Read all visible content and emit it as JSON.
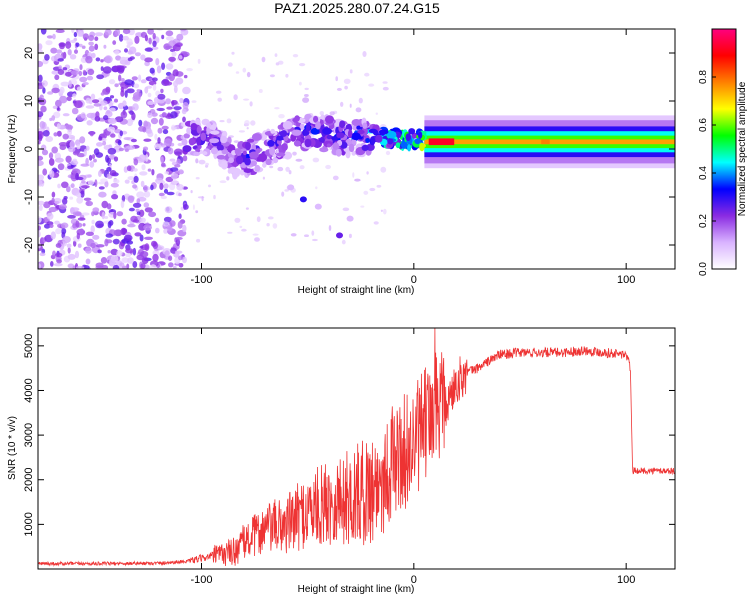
{
  "chart_data": [
    {
      "type": "heatmap",
      "title": "PAZ1.2025.280.07.24.G15",
      "xlabel": "Height of straight line (km)",
      "ylabel": "Frequency (Hz)",
      "xlim": [
        -177,
        123
      ],
      "ylim": [
        -25,
        25
      ],
      "xticks": [
        -100,
        0,
        100
      ],
      "yticks": [
        -20,
        -10,
        0,
        10,
        20
      ],
      "colorbar": {
        "label": "Normalized spectral amplitude",
        "range": [
          0,
          1
        ],
        "ticks": [
          0.0,
          0.2,
          0.4,
          0.6,
          0.8
        ],
        "colors": [
          "#ffffff",
          "#d9b3ff",
          "#8a2be2",
          "#0000ff",
          "#00ffff",
          "#00ff00",
          "#ffff00",
          "#ff8000",
          "#ff0000",
          "#ff007f"
        ]
      },
      "main_signal": [
        {
          "x": -108,
          "f": 2.5,
          "amp": 0.3
        },
        {
          "x": -95,
          "f": 2.0,
          "amp": 0.25
        },
        {
          "x": -85,
          "f": -2.0,
          "amp": 0.25
        },
        {
          "x": -78,
          "f": -2.0,
          "amp": 0.3
        },
        {
          "x": -70,
          "f": 0.0,
          "amp": 0.25
        },
        {
          "x": -60,
          "f": 2.0,
          "amp": 0.3
        },
        {
          "x": -50,
          "f": 4.0,
          "amp": 0.3
        },
        {
          "x": -40,
          "f": 3.0,
          "amp": 0.3
        },
        {
          "x": -30,
          "f": 2.0,
          "amp": 0.3
        },
        {
          "x": -20,
          "f": 3.0,
          "amp": 0.4
        },
        {
          "x": -10,
          "f": 2.0,
          "amp": 0.5
        },
        {
          "x": 0,
          "f": 2.0,
          "amp": 0.5
        },
        {
          "x": 10,
          "f": 1.5,
          "amp": 0.8
        },
        {
          "x": 30,
          "f": 1.5,
          "amp": 0.6
        },
        {
          "x": 60,
          "f": 1.5,
          "amp": 0.7
        },
        {
          "x": 100,
          "f": 1.5,
          "amp": 0.55
        },
        {
          "x": 123,
          "f": 1.5,
          "amp": 0.55
        }
      ]
    },
    {
      "type": "line",
      "xlabel": "Height of straight line (km)",
      "ylabel": "SNR (10 * v/v)",
      "xlim": [
        -177,
        123
      ],
      "ylim": [
        0,
        5400
      ],
      "xticks": [
        -100,
        0,
        100
      ],
      "yticks": [
        1000,
        2000,
        3000,
        4000,
        5000
      ],
      "color": "#ee3333",
      "series": [
        {
          "name": "SNR",
          "x": [
            -177,
            -150,
            -120,
            -105,
            -95,
            -85,
            -80,
            -70,
            -60,
            -50,
            -40,
            -30,
            -20,
            -15,
            -10,
            -5,
            0,
            5,
            10,
            15,
            20,
            25,
            30,
            40,
            50,
            60,
            70,
            80,
            90,
            100,
            102,
            103,
            110,
            123
          ],
          "y": [
            120,
            120,
            130,
            180,
            300,
            380,
            600,
            900,
            1000,
            1300,
            1500,
            1600,
            1800,
            2000,
            2400,
            2600,
            2800,
            3200,
            3600,
            3600,
            4200,
            4400,
            4500,
            4800,
            4850,
            4850,
            4850,
            4900,
            4850,
            4800,
            4500,
            2200,
            2200,
            2200
          ]
        }
      ]
    }
  ]
}
